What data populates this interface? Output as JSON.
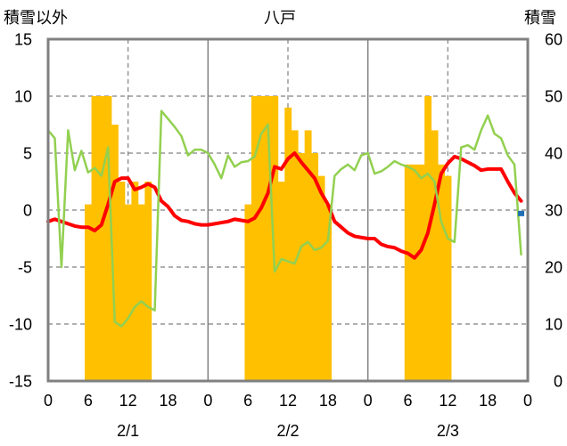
{
  "chart_data": {
    "type": "bar+line",
    "title": "八戸",
    "left_axis_label": "積雪以外",
    "right_axis_label": "積雪",
    "left_ylim": [
      -15,
      15
    ],
    "left_yticks": [
      "15",
      "10",
      "5",
      "0",
      "-5",
      "-10",
      "-15"
    ],
    "right_ylim": [
      0,
      60
    ],
    "right_yticks": [
      "60",
      "50",
      "40",
      "30",
      "20",
      "10",
      "0"
    ],
    "x_range_hours": [
      0,
      72
    ],
    "x_tick_labels": [
      "0",
      "6",
      "12",
      "18",
      "0",
      "6",
      "12",
      "18",
      "0",
      "6",
      "12",
      "18",
      "0"
    ],
    "date_labels": [
      "2/1",
      "2/2",
      "2/3"
    ],
    "grid": true,
    "colors": {
      "snow_depth": "#ffc000",
      "red_series": "#ff0000",
      "green_series": "#92d050",
      "purple_series": "#7030a0",
      "blue_series": "#1f6fb4",
      "frame": "#808080",
      "grid": "#808080"
    },
    "series": [
      {
        "kind": "bar",
        "axis": "right",
        "color": "#ffc000",
        "x": [
          6,
          7,
          8,
          9,
          10,
          11,
          12,
          13,
          14,
          15,
          30,
          31,
          32,
          33,
          34,
          35,
          36,
          37,
          38,
          39,
          40,
          41,
          42,
          54,
          55,
          56,
          57,
          58,
          59,
          60
        ],
        "values": [
          31,
          50,
          50,
          50,
          45,
          35,
          31,
          35,
          31,
          35,
          31,
          50,
          50,
          50,
          50,
          35,
          48,
          44,
          40,
          44,
          40,
          36,
          31,
          38,
          38,
          38,
          50,
          44,
          38,
          36
        ]
      },
      {
        "kind": "line",
        "axis": "left",
        "color": "#ff0000",
        "x": [
          0,
          1,
          2,
          3,
          4,
          5,
          6,
          7,
          8,
          9,
          10,
          11,
          12,
          13,
          14,
          15,
          16,
          17,
          18,
          19,
          20,
          21,
          22,
          23,
          24,
          25,
          26,
          27,
          28,
          29,
          30,
          31,
          32,
          33,
          34,
          35,
          36,
          37,
          38,
          39,
          40,
          41,
          42,
          43,
          44,
          45,
          46,
          47,
          48,
          49,
          50,
          51,
          52,
          53,
          54,
          55,
          56,
          57,
          58,
          59,
          60,
          61,
          62,
          63,
          64,
          65,
          66,
          67,
          68,
          69,
          70,
          71
        ],
        "values": [
          -1,
          -0.8,
          -1,
          -1.2,
          -1.4,
          -1.5,
          -1.5,
          -1.8,
          -1.3,
          0.5,
          2.5,
          2.8,
          2.8,
          1.8,
          2,
          2.3,
          2,
          0.8,
          0.3,
          -0.5,
          -0.9,
          -1,
          -1.2,
          -1.3,
          -1.3,
          -1.2,
          -1.1,
          -1,
          -0.8,
          -0.9,
          -1,
          -0.7,
          0.2,
          1.5,
          3.8,
          3.6,
          4.5,
          5,
          4.2,
          3.5,
          2.8,
          1.5,
          0.5,
          -1,
          -1.5,
          -2,
          -2.3,
          -2.4,
          -2.5,
          -2.5,
          -3,
          -3.2,
          -3.3,
          -3.6,
          -3.8,
          -4.2,
          -3.5,
          -2,
          0.5,
          3.2,
          4.1,
          4.7,
          4.5,
          4.2,
          3.9,
          3.5,
          3.6,
          3.6,
          3.6,
          2.5,
          1.5,
          0.8
        ]
      },
      {
        "kind": "line",
        "axis": "left",
        "color": "#92d050",
        "x": [
          0,
          1,
          2,
          3,
          4,
          5,
          6,
          7,
          8,
          9,
          10,
          11,
          12,
          13,
          14,
          15,
          16,
          17,
          18,
          19,
          20,
          21,
          22,
          23,
          24,
          25,
          26,
          27,
          28,
          29,
          30,
          31,
          32,
          33,
          34,
          35,
          36,
          37,
          38,
          39,
          40,
          41,
          42,
          43,
          44,
          45,
          46,
          47,
          48,
          49,
          50,
          51,
          52,
          53,
          54,
          55,
          56,
          57,
          58,
          59,
          60,
          61,
          62,
          63,
          64,
          65,
          66,
          67,
          68,
          69,
          70,
          71
        ],
        "values": [
          7,
          6.3,
          -5,
          7,
          3.5,
          5.2,
          3.3,
          3.7,
          3,
          5.5,
          -9.8,
          -10.2,
          -9.5,
          -8.5,
          -8,
          -8.5,
          -8.8,
          8.7,
          8,
          7.3,
          6.5,
          4.8,
          5.3,
          5.3,
          5,
          4,
          2.8,
          4.8,
          3.8,
          4.2,
          4.3,
          4.7,
          6.7,
          7.5,
          -5.4,
          -4.3,
          -4.5,
          -4.7,
          -3.2,
          -2.8,
          -3.5,
          -3.3,
          -2.7,
          3,
          3.6,
          4,
          3.5,
          4.8,
          5,
          3.2,
          3.4,
          3.8,
          4.3,
          4,
          3.8,
          3.5,
          2.8,
          3.2,
          2.5,
          -1,
          -2.5,
          -2.8,
          5.5,
          5.7,
          5.3,
          7,
          8.3,
          6.7,
          6.3,
          4.8,
          4,
          -3.9
        ]
      },
      {
        "kind": "line",
        "axis": "left",
        "color": "#7030a0",
        "x": [
          0,
          72
        ],
        "values": [
          -15,
          -15
        ]
      },
      {
        "kind": "marker",
        "axis": "left",
        "color": "#1f6fb4",
        "x": [
          71
        ],
        "values": [
          -0.3
        ]
      }
    ]
  }
}
